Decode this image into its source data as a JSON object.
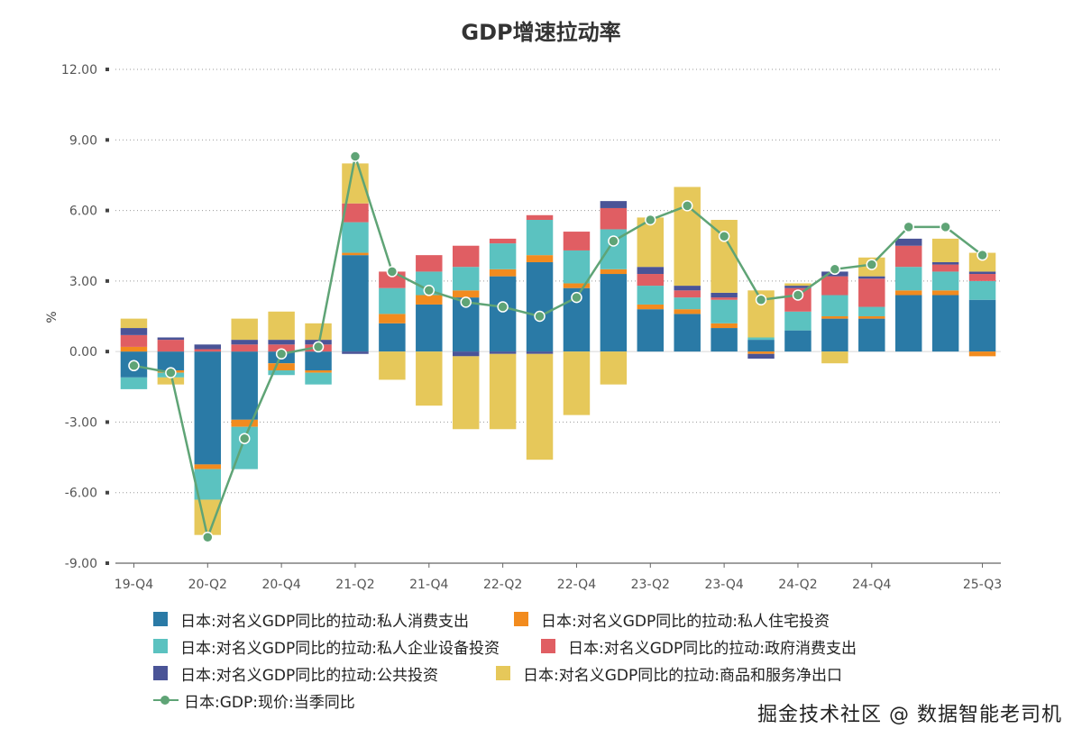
{
  "chart_data": {
    "type": "bar",
    "stacked": true,
    "title": "GDP增速拉动率",
    "ylabel": "%",
    "ylim": [
      -9,
      12
    ],
    "yticks": [
      "12.00",
      "9.00",
      "6.00",
      "3.00",
      "0.00",
      "-3.00",
      "-6.00",
      "-9.00"
    ],
    "ytick_values": [
      12,
      9,
      6,
      3,
      0,
      -3,
      -6,
      -9
    ],
    "categories": [
      "19-Q4",
      "20-Q1",
      "20-Q2",
      "20-Q3",
      "20-Q4",
      "21-Q1",
      "21-Q2",
      "21-Q3",
      "21-Q4",
      "22-Q1",
      "22-Q2",
      "22-Q3",
      "22-Q4",
      "23-Q1",
      "23-Q2",
      "23-Q3",
      "23-Q4",
      "24-Q1",
      "24-Q2",
      "24-Q3",
      "24-Q4",
      "25-Q1",
      "25-Q2",
      "25-Q3"
    ],
    "xtick_labels": [
      "19-Q4",
      "20-Q2",
      "20-Q4",
      "21-Q2",
      "21-Q4",
      "22-Q2",
      "22-Q4",
      "23-Q2",
      "23-Q4",
      "24-Q2",
      "24-Q4",
      "25-Q3"
    ],
    "series": [
      {
        "name": "日本:对名义GDP同比的拉动:私人消费支出",
        "color": "#2a7aa6",
        "values": [
          -1.1,
          -0.8,
          -4.8,
          -2.9,
          -0.5,
          -0.8,
          4.1,
          1.2,
          2.0,
          2.3,
          3.2,
          3.8,
          2.7,
          3.3,
          1.8,
          1.6,
          1.0,
          0.5,
          0.9,
          1.4,
          1.4,
          2.4,
          2.4,
          2.2
        ]
      },
      {
        "name": "日本:对名义GDP同比的拉动:私人住宅投资",
        "color": "#f28b1e",
        "values": [
          0.2,
          -0.1,
          -0.2,
          -0.3,
          -0.3,
          -0.1,
          0.1,
          0.4,
          0.4,
          0.3,
          0.3,
          0.3,
          0.2,
          0.2,
          0.2,
          0.2,
          0.2,
          -0.1,
          0.0,
          0.1,
          0.1,
          0.2,
          0.2,
          -0.2
        ]
      },
      {
        "name": "日本:对名义GDP同比的拉动:私人企业设备投资",
        "color": "#5bc2c0",
        "values": [
          -0.5,
          -0.2,
          -1.3,
          -1.8,
          -0.2,
          -0.5,
          1.3,
          1.1,
          1.0,
          1.0,
          1.1,
          1.5,
          1.4,
          1.7,
          0.8,
          0.5,
          1.0,
          0.1,
          0.8,
          0.9,
          0.4,
          1.0,
          0.8,
          0.8
        ]
      },
      {
        "name": "日本:对名义GDP同比的拉动:政府消费支出",
        "color": "#e05e63",
        "values": [
          0.5,
          0.5,
          0.1,
          0.3,
          0.3,
          0.3,
          0.8,
          0.7,
          0.7,
          0.9,
          0.2,
          0.2,
          0.8,
          0.9,
          0.5,
          0.3,
          0.1,
          0.0,
          1.0,
          0.8,
          1.2,
          0.9,
          0.3,
          0.3
        ]
      },
      {
        "name": "日本:对名义GDP同比的拉动:公共投资",
        "color": "#4a5497",
        "values": [
          0.3,
          0.1,
          0.2,
          0.2,
          0.2,
          0.2,
          -0.1,
          0.0,
          0.0,
          -0.2,
          -0.1,
          -0.1,
          0.0,
          0.3,
          0.3,
          0.2,
          0.2,
          -0.2,
          0.1,
          0.2,
          0.1,
          0.3,
          0.1,
          0.1
        ]
      },
      {
        "name": "日本:对名义GDP同比的拉动:商品和服务净出口",
        "color": "#e6c85a",
        "values": [
          0.4,
          -0.3,
          -1.5,
          0.9,
          1.2,
          0.7,
          1.7,
          -1.2,
          -2.3,
          -3.1,
          -3.2,
          -4.5,
          -2.7,
          -1.4,
          2.1,
          4.2,
          3.1,
          2.0,
          0.1,
          -0.5,
          0.8,
          0.0,
          1.0,
          0.8
        ]
      }
    ],
    "line": {
      "name": "日本:GDP:现价:当季同比",
      "color": "#5fa476",
      "values": [
        -0.6,
        -0.9,
        -7.9,
        -3.7,
        -0.1,
        0.2,
        8.3,
        3.4,
        2.6,
        2.1,
        1.9,
        1.5,
        2.3,
        4.7,
        5.6,
        6.2,
        4.9,
        2.2,
        2.4,
        3.5,
        3.7,
        5.3,
        5.3,
        4.1
      ]
    }
  },
  "legend": {
    "items": [
      "日本:对名义GDP同比的拉动:私人消费支出",
      "日本:对名义GDP同比的拉动:私人住宅投资",
      "日本:对名义GDP同比的拉动:私人企业设备投资",
      "日本:对名义GDP同比的拉动:政府消费支出",
      "日本:对名义GDP同比的拉动:公共投资",
      "日本:对名义GDP同比的拉动:商品和服务净出口",
      "日本:GDP:现价:当季同比"
    ]
  },
  "colors": {
    "consumption": "#2a7aa6",
    "housing": "#f28b1e",
    "capex": "#5bc2c0",
    "gov": "#e05e63",
    "public": "#4a5497",
    "netexport": "#e6c85a",
    "line": "#5fa476"
  },
  "watermark": "掘金技术社区 @ 数据智能老司机"
}
